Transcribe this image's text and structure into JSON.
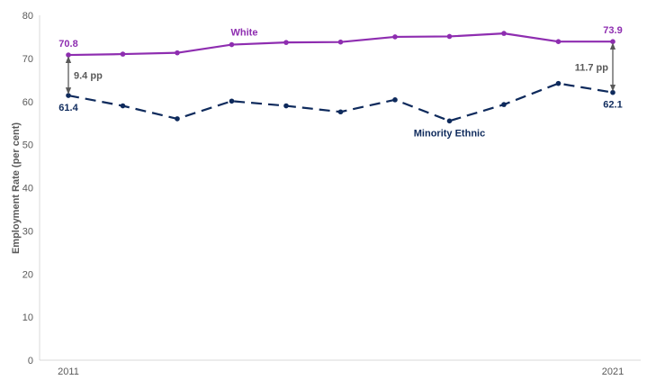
{
  "chart_data": {
    "type": "line",
    "ylabel": "Employment Rate (per cent)",
    "ylim": [
      0,
      80
    ],
    "yticks": [
      0,
      10,
      20,
      30,
      40,
      50,
      60,
      70,
      80
    ],
    "x": [
      2011,
      2012,
      2013,
      2014,
      2015,
      2016,
      2017,
      2018,
      2019,
      2020,
      2021
    ],
    "xtick_labels": [
      "2011",
      "2021"
    ],
    "grid": false,
    "series": [
      {
        "name": "White",
        "color": "#8e2db0",
        "style": "solid",
        "values": [
          70.8,
          71.0,
          71.3,
          73.2,
          73.7,
          73.8,
          75.0,
          75.1,
          75.8,
          73.9,
          73.9
        ]
      },
      {
        "name": "Minority Ethnic",
        "color": "#0e2a5c",
        "style": "dashed",
        "values": [
          61.4,
          59.0,
          56.0,
          60.1,
          59.0,
          57.6,
          60.4,
          55.5,
          59.3,
          64.2,
          62.1
        ]
      }
    ],
    "data_labels": {
      "white_start": "70.8",
      "white_end": "73.9",
      "minority_start": "61.4",
      "minority_end": "62.1"
    },
    "gap_annotations": [
      {
        "label": "9.4 pp",
        "x": 2011,
        "from": 61.4,
        "to": 70.8
      },
      {
        "label": "11.7 pp",
        "x": 2021,
        "from": 62.1,
        "to": 73.9
      }
    ],
    "gap_color": "#595959"
  }
}
